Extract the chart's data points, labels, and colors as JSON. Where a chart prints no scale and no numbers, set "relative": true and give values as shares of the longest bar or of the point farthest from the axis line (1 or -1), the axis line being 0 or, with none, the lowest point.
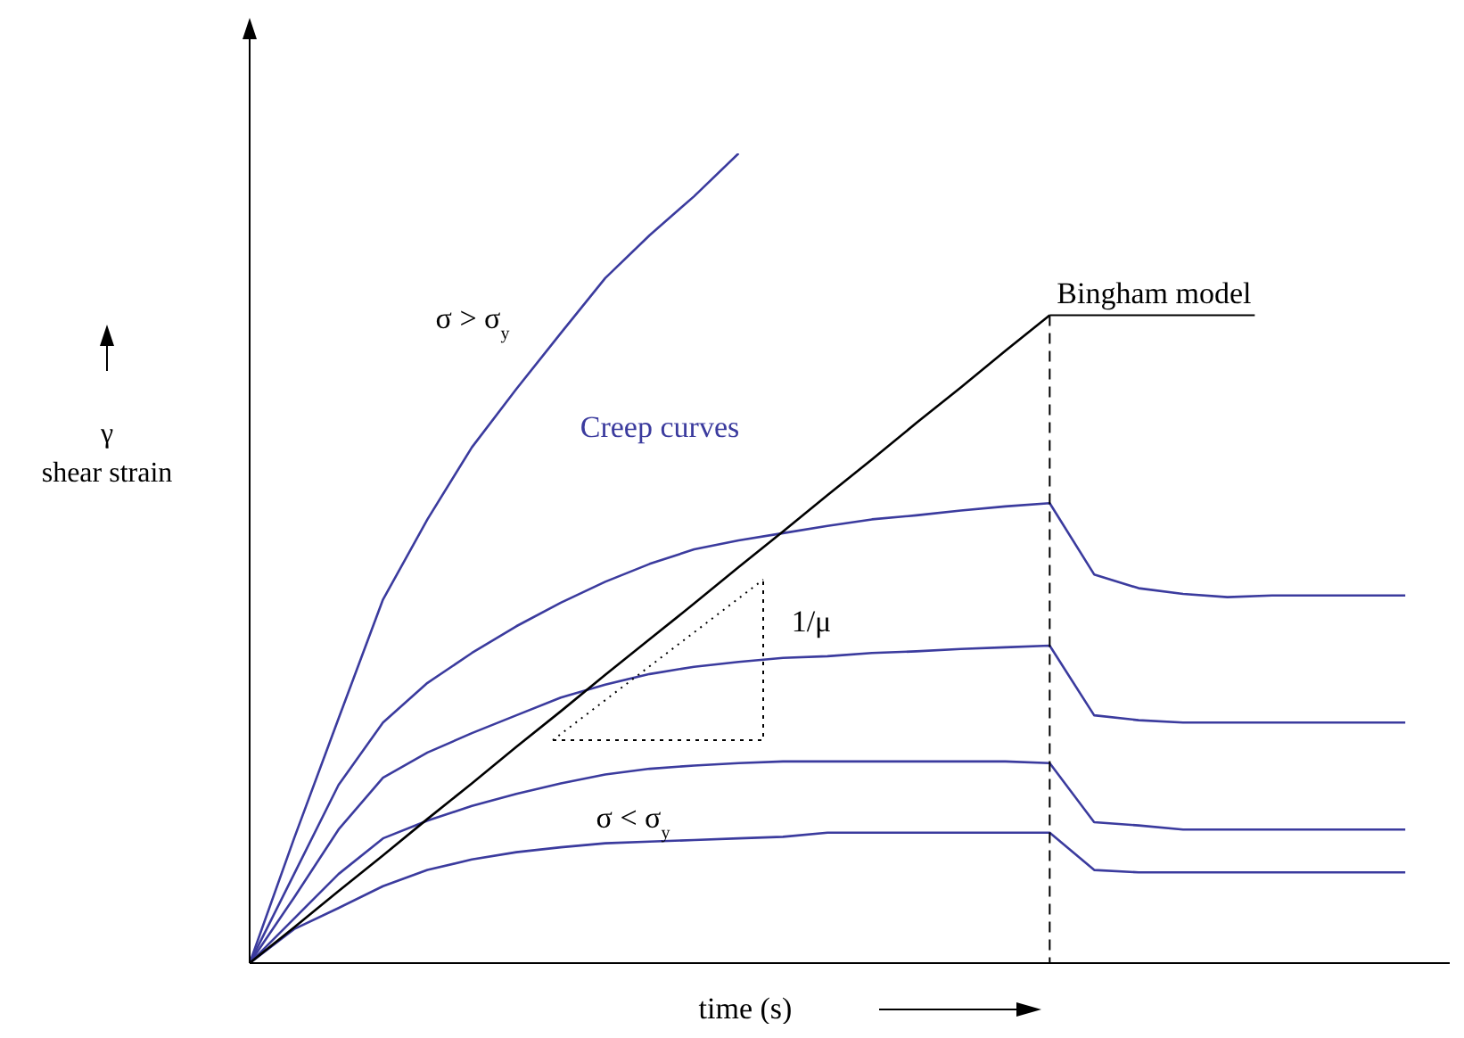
{
  "chart_data": {
    "type": "line",
    "relative": true,
    "xlabel": "time (s)",
    "ylabel": "γ shear strain",
    "marker": "none",
    "categories": [
      null,
      null,
      null,
      null,
      null,
      null,
      null,
      null,
      null,
      null,
      null,
      null,
      null,
      null,
      null,
      null,
      null,
      null,
      null,
      null,
      null,
      null,
      null,
      null,
      null,
      null,
      null,
      null
    ],
    "series": [
      {
        "color": "#3b3b9e",
        "values": [
          0,
          0.154,
          0.302,
          0.449,
          0.548,
          0.637,
          0.709,
          0.778,
          0.846,
          0.899,
          0.947,
          1,
          null,
          null,
          null,
          null,
          null,
          null,
          null,
          null,
          null,
          null,
          null,
          null,
          null,
          null,
          null,
          null
        ]
      },
      {
        "color": "#3b3b9e",
        "values": [
          0,
          0.11,
          0.22,
          0.297,
          0.346,
          0.383,
          0.416,
          0.445,
          0.471,
          0.493,
          0.511,
          0.522,
          0.531,
          0.54,
          0.548,
          0.553,
          0.559,
          0.564,
          0.568,
          0.48,
          0.463,
          0.456,
          0.452,
          0.454,
          0.454,
          0.454,
          0.454,
          null
        ]
      },
      {
        "color": "#3b3b9e",
        "values": [
          0,
          0.081,
          0.165,
          0.229,
          0.26,
          0.284,
          0.306,
          0.328,
          0.344,
          0.357,
          0.366,
          0.372,
          0.377,
          0.379,
          0.383,
          0.385,
          0.388,
          0.39,
          0.392,
          0.306,
          0.3,
          0.297,
          0.297,
          0.297,
          0.297,
          0.297,
          0.297,
          null
        ]
      },
      {
        "color": "#3b3b9e",
        "values": [
          0,
          0.055,
          0.11,
          0.154,
          0.176,
          0.194,
          0.209,
          0.222,
          0.233,
          0.24,
          0.244,
          0.247,
          0.249,
          0.249,
          0.249,
          0.249,
          0.249,
          0.249,
          0.247,
          0.174,
          0.17,
          0.165,
          0.165,
          0.165,
          0.165,
          0.165,
          0.165,
          null
        ]
      },
      {
        "color": "#3b3b9e",
        "values": [
          0,
          0.042,
          0.068,
          0.095,
          0.115,
          0.128,
          0.137,
          0.143,
          0.148,
          0.15,
          0.152,
          0.154,
          0.156,
          0.161,
          0.161,
          0.161,
          0.161,
          0.161,
          0.161,
          0.115,
          0.112,
          0.112,
          0.112,
          0.112,
          0.112,
          0.112,
          0.112,
          null
        ]
      },
      {
        "name": "Bingham model",
        "color": "#000000",
        "values": [
          0,
          0.044,
          0.089,
          0.133,
          0.178,
          0.222,
          0.267,
          0.311,
          0.356,
          0.4,
          0.444,
          0.489,
          0.533,
          0.578,
          0.622,
          0.667,
          0.711,
          0.756,
          0.8,
          null,
          null,
          null,
          null,
          null,
          null,
          null,
          null,
          null
        ]
      }
    ],
    "annotations": [
      "σ > σ$_{y}$",
      "Creep curves",
      "σ < σ$_{y}$",
      "1/μ"
    ]
  }
}
